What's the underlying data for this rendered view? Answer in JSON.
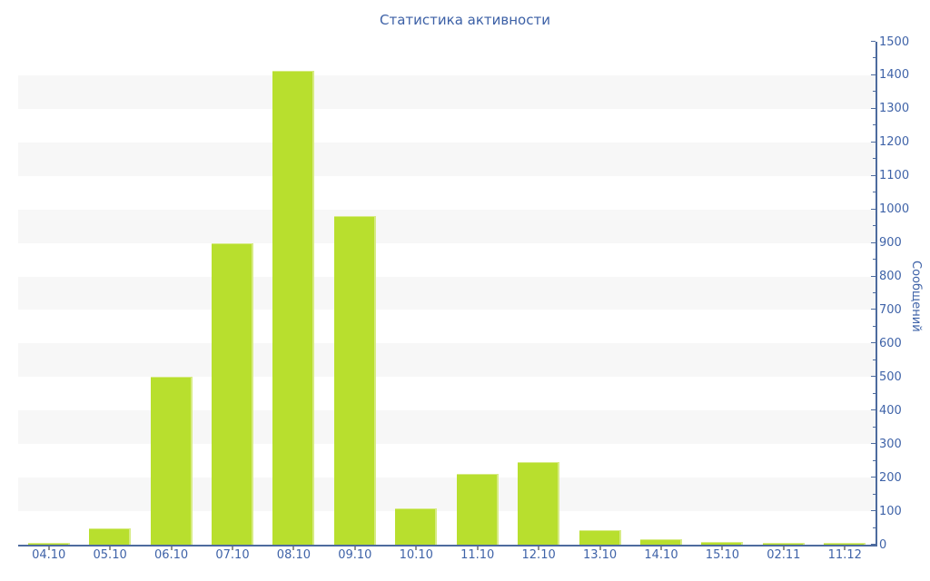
{
  "chart_data": {
    "type": "bar",
    "title": "Статистика активности",
    "categories": [
      "04.10",
      "05.10",
      "06.10",
      "07.10",
      "08.10",
      "09.10",
      "10.10",
      "11.10",
      "12.10",
      "13.10",
      "14.10",
      "15.10",
      "02.11",
      "11.12"
    ],
    "values": [
      5,
      50,
      500,
      898,
      1414,
      981,
      108,
      212,
      247,
      43,
      15,
      8,
      4,
      6
    ],
    "xlabel": "",
    "ylabel": "Сообщений",
    "ylim": [
      0,
      1500
    ],
    "y_major_step": 100,
    "y_minor_step": 50,
    "y_axis_side": "right",
    "grid": "alternating-horizontal-bands",
    "legend": "none"
  },
  "colors": {
    "background": "#ffffff",
    "bar_fill": "#b8df2e",
    "bar_edge": "#d7eb85",
    "axis_line": "#4d6b9e",
    "tick_text": "#3f63a8",
    "title_text": "#3c60a6",
    "band_fill": "#f7f7f7",
    "x_tick_mark": "#909090"
  }
}
